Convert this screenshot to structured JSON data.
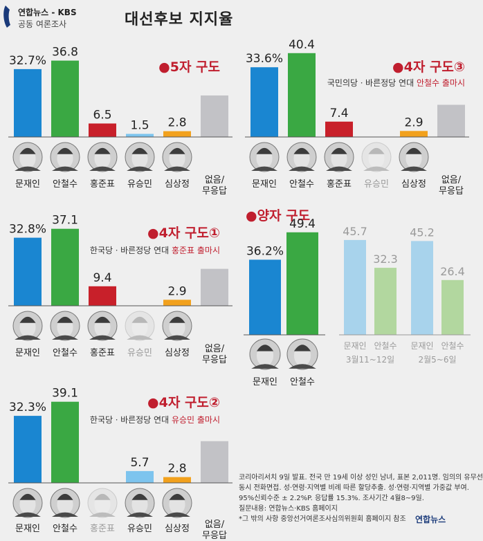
{
  "header": {
    "logo_line1": "연합뉴스 - KBS",
    "logo_line2": "공동 여론조사",
    "title": "대선후보 지지율"
  },
  "colors": {
    "moon": "#1a86d1",
    "ahn": "#3aa843",
    "hong": "#c8202a",
    "yoo": "#7dc4ee",
    "sim": "#f2a11d",
    "none": "#c2c2c6",
    "hist_blue": "#a8d3ec",
    "hist_green": "#b2d79f",
    "accent_red": "#c01e2e",
    "grey_text": "#9a9a9a"
  },
  "chart_data": [
    {
      "id": "p1",
      "type": "bar",
      "title": "5자 구도",
      "subtitle": "",
      "subtitle_highlight": "",
      "subtitle_end": "",
      "categories": [
        "문재인",
        "안철수",
        "홍준표",
        "유승민",
        "심상정",
        "없음/무응답"
      ],
      "values": [
        32.7,
        36.8,
        6.5,
        1.5,
        2.8,
        20.0
      ],
      "labels": [
        "32.7%",
        "36.8",
        "6.5",
        "1.5",
        "2.8",
        ""
      ],
      "faded": []
    },
    {
      "id": "p2",
      "type": "bar",
      "title": "4자 구도③",
      "subtitle": "국민의당ㆍ바른정당 연대 ",
      "subtitle_highlight": "안철수 출마시",
      "subtitle_end": "",
      "categories": [
        "문재인",
        "안철수",
        "홍준표",
        "유승민",
        "심상정",
        "없음/무응답"
      ],
      "values": [
        33.6,
        40.4,
        7.4,
        null,
        2.9,
        15.5
      ],
      "labels": [
        "33.6%",
        "40.4",
        "7.4",
        "",
        "2.9",
        ""
      ],
      "faded": [
        3
      ]
    },
    {
      "id": "p3",
      "type": "bar",
      "title": "4자 구도①",
      "subtitle": "한국당ㆍ바른정당 연대 ",
      "subtitle_highlight": "홍준표 출마시",
      "subtitle_end": "",
      "categories": [
        "문재인",
        "안철수",
        "홍준표",
        "유승민",
        "심상정",
        "없음/무응답"
      ],
      "values": [
        32.8,
        37.1,
        9.4,
        null,
        2.9,
        17.8
      ],
      "labels": [
        "32.8%",
        "37.1",
        "9.4",
        "",
        "2.9",
        ""
      ],
      "faded": [
        3
      ]
    },
    {
      "id": "p4",
      "type": "bar",
      "title": "4자 구도②",
      "subtitle": "한국당ㆍ바른정당 연대 ",
      "subtitle_highlight": "유승민 출마시",
      "subtitle_end": "",
      "categories": [
        "문재인",
        "안철수",
        "홍준표",
        "유승민",
        "심상정",
        "없음/무응답"
      ],
      "values": [
        32.3,
        39.1,
        null,
        5.7,
        2.8,
        20.1
      ],
      "labels": [
        "32.3%",
        "39.1",
        "",
        "5.7",
        "2.8",
        ""
      ],
      "faded": [
        2
      ]
    },
    {
      "id": "p5",
      "type": "bar",
      "title": "양자 구도",
      "categories": [
        "문재인",
        "안철수"
      ],
      "values": [
        36.2,
        49.4
      ],
      "labels": [
        "36.2%",
        "49.4"
      ],
      "history": [
        {
          "categories": [
            "문재인",
            "안철수"
          ],
          "values": [
            45.7,
            32.3
          ],
          "labels": [
            "45.7",
            "32.3"
          ],
          "period": "3월11~12일"
        },
        {
          "categories": [
            "문재인",
            "안철수"
          ],
          "values": [
            45.2,
            26.4
          ],
          "labels": [
            "45.2",
            "26.4"
          ],
          "period": "2월5~6일"
        }
      ]
    }
  ],
  "footer": {
    "lines": [
      "코리아리서치 9일 발표. 전국 만 19세 이상 성인 남녀, 표본 2,011명. 임의의 유무선",
      "동시 전화면접. 성·연령·지역별 비례 따른 할당추출. 성·연령·지역별 가중값 부여.",
      "95%신뢰수준 ± 2.2%P. 응답률 15.3%. 조사기간 4월8~9일.",
      "질문내용: 연합뉴스·KBS 홈페이지",
      "*그 밖의 사항 중앙선거여론조사심의위원회 홈페이지 참조"
    ],
    "brand": "연합뉴스"
  }
}
